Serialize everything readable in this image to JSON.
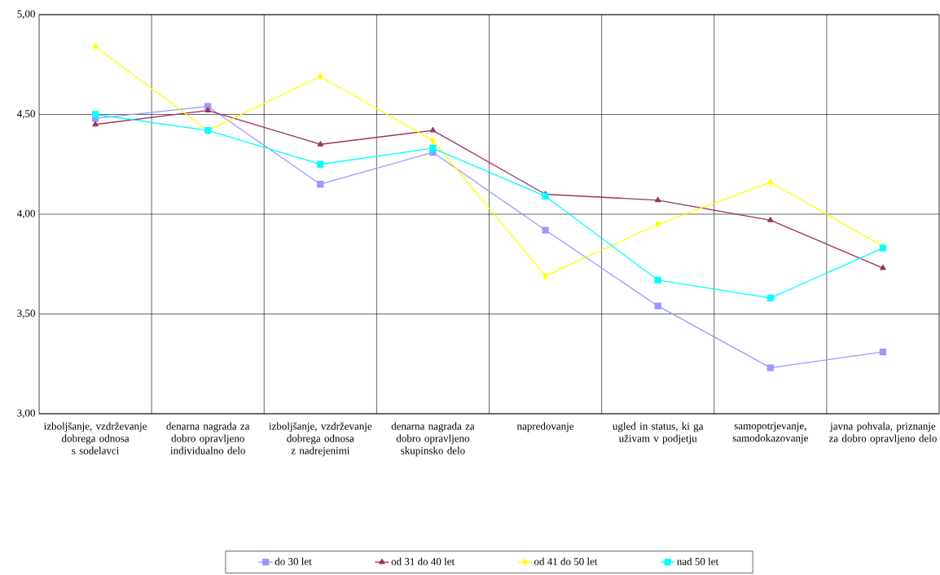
{
  "chart_data": {
    "type": "line",
    "categories": [
      "izboljšanje, vzdrževanje dobrega odnosa s sodelavci",
      "denarna nagrada za dobro opravljeno individualno delo",
      "izboljšanje, vzdrževanje dobrega odnosa z nadrejenimi",
      "denarna nagrada za dobro opravljeno skupinsko delo",
      "napredovanje",
      "ugled in status, ki ga uživam v podjetju",
      "samopotrjevanje, samodokazovanje",
      "javna pohvala, priznanje za dobro opravljeno delo"
    ],
    "series": [
      {
        "name": "do 30 let",
        "color": "#9999ff",
        "marker": "square",
        "values": [
          4.48,
          4.54,
          4.15,
          4.31,
          3.92,
          3.54,
          3.23,
          3.31
        ]
      },
      {
        "name": "od 31 do 40 let",
        "color": "#993366",
        "marker": "triangle",
        "values": [
          4.45,
          4.52,
          4.35,
          4.42,
          4.1,
          4.07,
          3.97,
          3.73
        ]
      },
      {
        "name": "od 41 do 50 let",
        "color": "#ffff00",
        "marker": "diamond",
        "values": [
          4.84,
          4.42,
          4.69,
          4.37,
          3.69,
          3.95,
          4.16,
          3.84
        ]
      },
      {
        "name": "nad 50 let",
        "color": "#00ffff",
        "marker": "square",
        "values": [
          4.5,
          4.42,
          4.25,
          4.33,
          4.09,
          3.67,
          3.58,
          3.83
        ]
      }
    ],
    "ylim": [
      3,
      5
    ],
    "yticks": [
      {
        "value": 3,
        "label": "3,00"
      },
      {
        "value": 3.5,
        "label": "3,50"
      },
      {
        "value": 4,
        "label": "4,00"
      },
      {
        "value": 4.5,
        "label": "4,50"
      },
      {
        "value": 5,
        "label": "5,00"
      }
    ],
    "grid": true,
    "legend": "bottom",
    "line_style": "solid"
  }
}
